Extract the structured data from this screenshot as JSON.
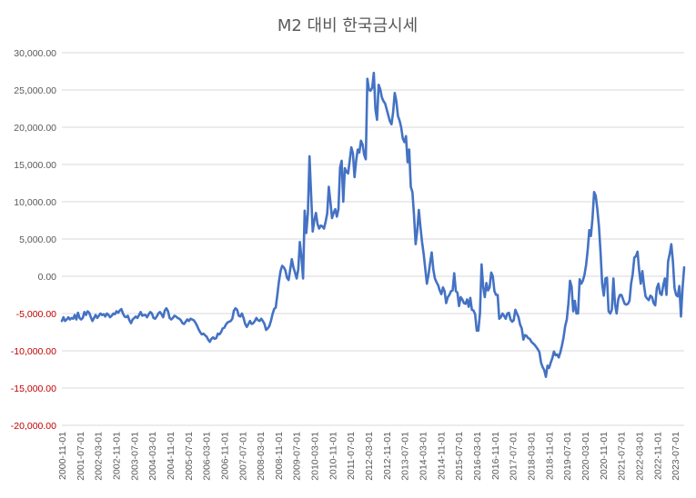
{
  "chart_data": {
    "type": "line",
    "title": "M2 대비 한국금시세",
    "xlabel": "",
    "ylabel": "",
    "ylim": [
      -20000,
      30000
    ],
    "ytick_step": 5000,
    "ytick_labels": [
      "30,000.00",
      "25,000.00",
      "20,000.00",
      "15,000.00",
      "10,000.00",
      "5,000.00",
      "0.00",
      "-5,000.00",
      "-10,000.00",
      "-15,000.00",
      "-20,000.00"
    ],
    "ytick_values": [
      30000,
      25000,
      20000,
      15000,
      10000,
      5000,
      0,
      -5000,
      -10000,
      -15000,
      -20000
    ],
    "xtick_labels": [
      "2000-11-01",
      "2001-07-01",
      "2002-03-01",
      "2002-11-01",
      "2003-07-01",
      "2004-03-01",
      "2004-11-01",
      "2005-07-01",
      "2006-03-01",
      "2006-11-01",
      "2007-07-01",
      "2008-03-01",
      "2008-11-01",
      "2009-07-01",
      "2010-03-01",
      "2010-11-01",
      "2011-07-01",
      "2012-03-01",
      "2012-11-01",
      "2013-07-01",
      "2014-03-01",
      "2014-11-01",
      "2015-07-01",
      "2016-03-01",
      "2016-11-01",
      "2017-07-01",
      "2018-03-01",
      "2018-11-01",
      "2019-07-01",
      "2020-03-01",
      "2020-11-01",
      "2021-07-01",
      "2022-03-01",
      "2022-11-01",
      "2023-07-01"
    ],
    "grid": true,
    "legend": "none",
    "negative_label_color": "#c00000",
    "positive_label_color": "#595959",
    "line_color": "#4472c4",
    "x_start": "2000-11",
    "x_end": "2023-11",
    "series": [
      {
        "values": [
          [
            -6000,
            -5500,
            -6000,
            -5800,
            -5500,
            -5800,
            -5600,
            -5700,
            -5200,
            -5800,
            -4900,
            -5600,
            -5800,
            -5600,
            -4800,
            -5200,
            -4700,
            -4900,
            -5500,
            -6000,
            -5600,
            -5200,
            -5600,
            -5300,
            -5000,
            -5200,
            -5100,
            -5400,
            -5000,
            -5200,
            -5500,
            -5300,
            -5000,
            -5100,
            -4700,
            -4900
          ],
          [
            -4600,
            -4400,
            -5000,
            -5400,
            -5500,
            -5300,
            -5900,
            -6300,
            -5800,
            -5600,
            -5400,
            -5600,
            -5200,
            -4800,
            -5300,
            -5200,
            -5200,
            -5500,
            -5100,
            -4800,
            -5000,
            -5600,
            -5700,
            -5400,
            -5000,
            -4800,
            -5100,
            -5500,
            -4600,
            -4300,
            -4700,
            -5600,
            -5800,
            -5600,
            -5300,
            -5400
          ],
          [
            -5600,
            -5700,
            -5900,
            -6300,
            -6400,
            -6100,
            -5800,
            -6000,
            -5700,
            -5800,
            -5900,
            -6200,
            -6600,
            -7100,
            -7500,
            -7800,
            -7700,
            -7900,
            -8100,
            -8500,
            -8800,
            -8400,
            -8200,
            -8400,
            -8300,
            -7700,
            -7800,
            -7500,
            -7000,
            -6900,
            -6500,
            -6200,
            -6100,
            -6000,
            -5700,
            -4600
          ],
          [
            -4300,
            -4500,
            -5300,
            -5400,
            -5000,
            -5600,
            -6400,
            -6800,
            -6400,
            -6000,
            -6400,
            -6300,
            -6000,
            -5600,
            -5900,
            -6000,
            -5700,
            -6000,
            -6400,
            -7200,
            -7000,
            -6700,
            -6000,
            -5100,
            -4400,
            -4200,
            -2500,
            -700,
            700,
            1400,
            1200,
            800,
            -200,
            -500,
            900,
            2300
          ],
          [
            1200,
            500,
            -300,
            900,
            4600,
            2500,
            -300,
            8800,
            5800,
            8500,
            16100,
            11000,
            6000,
            7500,
            8500,
            7000,
            6400,
            6800,
            6700,
            6400,
            7300,
            8400,
            12000,
            10000,
            7800,
            8500,
            9000,
            8000,
            9000,
            14600,
            15500,
            10000,
            14500,
            14000,
            13800,
            15500
          ],
          [
            17300,
            16500,
            13300,
            15500,
            17000,
            16600,
            18200,
            17700,
            16300,
            15700,
            26500,
            25000,
            24900,
            25300,
            27300,
            22400,
            21000,
            25700,
            25100,
            24000,
            23500,
            23200,
            22400,
            21600,
            20800,
            20400,
            22000,
            24600,
            23500,
            21500,
            20900,
            20000,
            18500,
            18000,
            18800,
            15300
          ],
          [
            17000,
            12000,
            11300,
            8200,
            4300,
            6100,
            8900,
            6600,
            4600,
            3000,
            1000,
            -1000,
            200,
            1800,
            3200,
            900,
            -300,
            -800,
            -1200,
            -1900,
            -2400,
            -1500,
            -2000,
            -3600,
            -2800,
            -2500,
            -2000,
            -1900,
            400,
            -2000,
            -2200,
            -4000,
            -2800,
            -3100,
            -3600,
            -3700
          ],
          [
            -3100,
            -4100,
            -2900,
            -4500,
            -4600,
            -5100,
            -7300,
            -7300,
            -5000,
            1600,
            -1400,
            -2800,
            -900,
            -1900,
            -1500,
            500,
            0,
            -2000,
            -2500,
            -2500,
            -5700,
            -5500,
            -5000,
            -5300,
            -5700,
            -5000,
            -4900,
            -5800,
            -6100,
            -5900,
            -4500,
            -5000,
            -5500,
            -6500,
            -7000,
            -8500
          ],
          [
            -7900,
            -8000,
            -8300,
            -8400,
            -8800,
            -9000,
            -9200,
            -9500,
            -9800,
            -10200,
            -11600,
            -12200,
            -12600,
            -13500,
            -12000,
            -12300,
            -11600,
            -11000,
            -10100,
            -10600,
            -10500,
            -10900,
            -10200,
            -9300,
            -8200,
            -6700,
            -5800,
            -3700,
            -600,
            -1400,
            -4700,
            -3300,
            -5000,
            -5000,
            -400,
            -1000
          ],
          [
            -600,
            200,
            1500,
            3500,
            6200,
            5400,
            7800,
            11300,
            10800,
            9000,
            6700,
            3200,
            -1000,
            -2600,
            -300,
            -200,
            -4700,
            -5000,
            -4500,
            -300,
            -3800,
            -5000,
            -3100,
            -2500,
            -2500,
            -3100,
            -3700,
            -3800,
            -3700,
            -3300,
            -1000,
            300,
            2500,
            2700,
            3300,
            800,
            -1000
          ],
          [
            700,
            -1200,
            -2700,
            -3000,
            -3200,
            -2600,
            -2800,
            -3600,
            -3900,
            -1600,
            -1000,
            -2300,
            -2500,
            -1200,
            -300,
            -2500,
            2000,
            3000,
            4300,
            2000,
            -1600,
            -2500,
            -2700,
            -1300,
            -5400,
            -1600,
            1200
          ]
        ]
      }
    ]
  }
}
